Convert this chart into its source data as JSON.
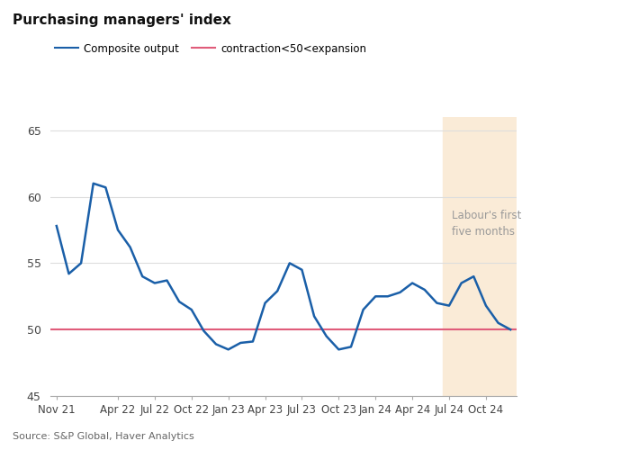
{
  "title": "Purchasing managers' index",
  "source": "Source: S&P Global, Haver Analytics",
  "legend_entries": [
    "Composite output",
    "contraction<50<expansion"
  ],
  "legend_colors": [
    "#1a5fa8",
    "#e05c7a"
  ],
  "line_color": "#1a5fa8",
  "threshold_color": "#e05c7a",
  "threshold_value": 50,
  "shading_color": "#faebd7",
  "annotation": "Labour's first\nfive months",
  "annotation_color": "#999999",
  "ylim": [
    45,
    66
  ],
  "yticks": [
    45,
    50,
    55,
    60,
    65
  ],
  "background_color": "#ffffff",
  "grid_color": "#dddddd",
  "x_labels": [
    "Nov 21",
    "Apr 22",
    "Jul 22",
    "Oct 22",
    "Jan 23",
    "Apr 23",
    "Jul 23",
    "Oct 23",
    "Jan 24",
    "Apr 24",
    "Jul 24",
    "Oct 24"
  ],
  "data_values": [
    57.8,
    54.2,
    55.0,
    61.0,
    60.7,
    57.5,
    56.2,
    54.0,
    53.5,
    53.7,
    52.1,
    51.5,
    49.9,
    48.9,
    48.5,
    49.0,
    49.1,
    52.0,
    52.9,
    55.0,
    54.5,
    51.0,
    49.5,
    48.5,
    48.7,
    51.5,
    52.5,
    52.5,
    52.8,
    53.5,
    53.0,
    52.0,
    51.8,
    53.5,
    54.0,
    51.8,
    50.5,
    50.0
  ],
  "n_months": 38,
  "shading_start_month": 32,
  "x_tick_positions": [
    0,
    5,
    8,
    11,
    14,
    17,
    20,
    23,
    26,
    29,
    32,
    35
  ]
}
